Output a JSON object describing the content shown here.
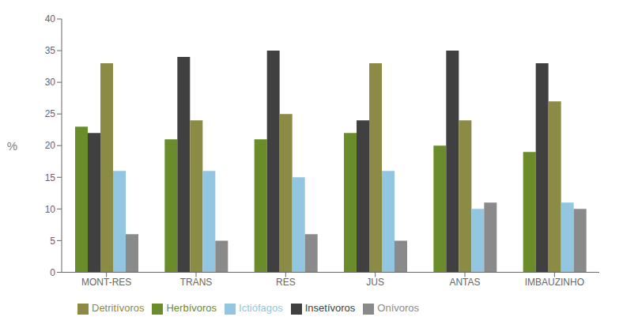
{
  "chart_data": {
    "type": "bar",
    "categories": [
      "MONT-RES",
      "TRANS",
      "RES",
      "JUS",
      "ANTAS",
      "IMBAUZINHO"
    ],
    "series": [
      {
        "name": "Herbívoros",
        "color": "#6b8c2a",
        "values": [
          23,
          21,
          21,
          22,
          20,
          19
        ]
      },
      {
        "name": "Insetívoros",
        "color": "#404040",
        "values": [
          22,
          34,
          35,
          24,
          35,
          33
        ]
      },
      {
        "name": "Detritívoros",
        "color": "#8b8b45",
        "values": [
          33,
          24,
          25,
          33,
          24,
          27
        ]
      },
      {
        "name": "Ictiófagos",
        "color": "#93c6e0",
        "values": [
          16,
          16,
          15,
          16,
          10,
          11
        ]
      },
      {
        "name": "Onívoros",
        "color": "#8a8a8a",
        "values": [
          6,
          5,
          6,
          5,
          11,
          10
        ]
      }
    ],
    "ylabel": "%",
    "ylim": [
      0,
      40
    ],
    "yticks": [
      0,
      5,
      10,
      15,
      20,
      25,
      30,
      35,
      40
    ],
    "grid": false,
    "legend": "bottom"
  }
}
